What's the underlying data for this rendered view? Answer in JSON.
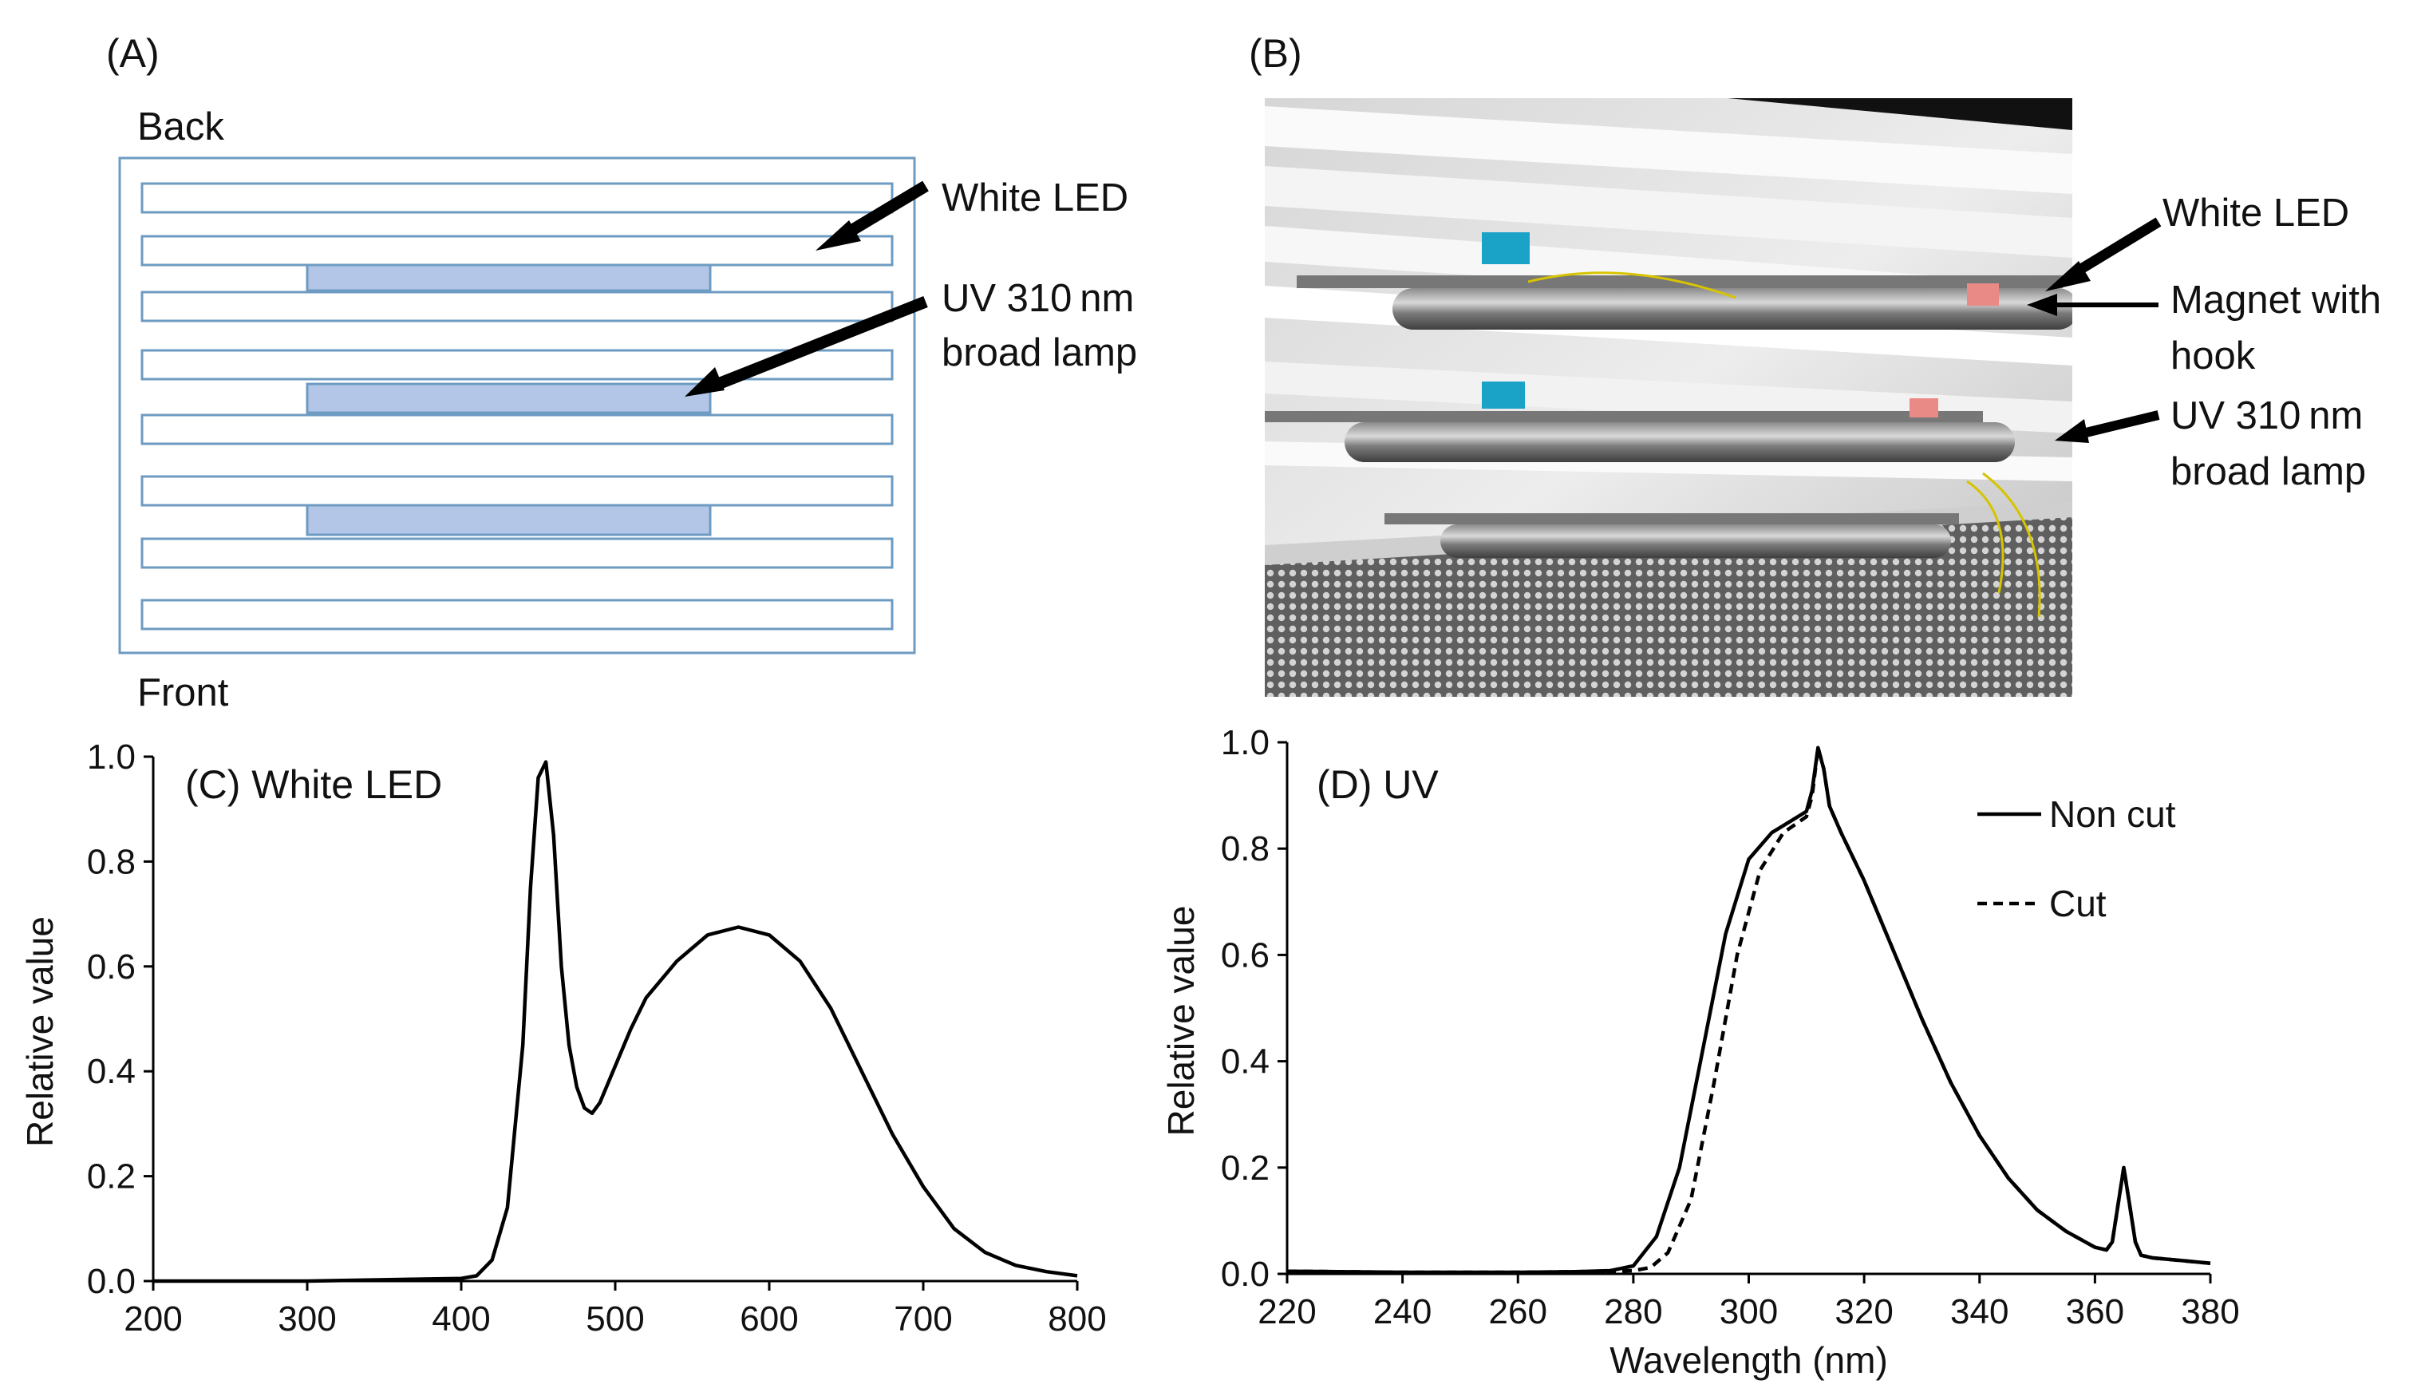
{
  "panel_a": {
    "letter": "(A)",
    "back_label": "Back",
    "front_label": "Front",
    "white_led_label": "White LED",
    "uv_label_line1": "UV 310 nm",
    "uv_label_line2": "broad lamp",
    "rack_color": "#6e9bc2",
    "uv_fill": "#b4c6e7"
  },
  "panel_b": {
    "letter": "(B)",
    "white_led_label": "White LED",
    "magnet_line1": "Magnet with",
    "magnet_line2": "hook",
    "uv_line1": "UV 310 nm",
    "uv_line2": "broad lamp"
  },
  "chart_data": [
    {
      "type": "line",
      "panel": "C",
      "title": "(C) White LED",
      "xlabel": "",
      "ylabel": "Relative value",
      "xlim": [
        200,
        800
      ],
      "ylim": [
        0,
        1
      ],
      "x_ticks": [
        "200",
        "300",
        "400",
        "500",
        "600",
        "700",
        "800"
      ],
      "y_ticks": [
        "0.0",
        "0.2",
        "0.4",
        "0.6",
        "0.8",
        "1.0"
      ],
      "series": [
        {
          "name": "White LED",
          "style": "solid",
          "x": [
            200,
            300,
            400,
            410,
            420,
            430,
            440,
            445,
            450,
            455,
            460,
            465,
            470,
            475,
            480,
            485,
            490,
            500,
            510,
            520,
            540,
            560,
            580,
            600,
            620,
            640,
            660,
            680,
            700,
            720,
            740,
            760,
            780,
            800
          ],
          "y": [
            0.0,
            0.0,
            0.005,
            0.01,
            0.04,
            0.14,
            0.45,
            0.75,
            0.96,
            0.99,
            0.85,
            0.6,
            0.45,
            0.37,
            0.33,
            0.32,
            0.34,
            0.41,
            0.48,
            0.54,
            0.61,
            0.66,
            0.675,
            0.66,
            0.61,
            0.52,
            0.4,
            0.28,
            0.18,
            0.1,
            0.055,
            0.03,
            0.018,
            0.01
          ]
        }
      ]
    },
    {
      "type": "line",
      "panel": "D",
      "title": "(D) UV",
      "xlabel": "Wavelength (nm)",
      "ylabel": "Relative value",
      "xlim": [
        220,
        380
      ],
      "ylim": [
        0,
        1
      ],
      "x_ticks": [
        "220",
        "240",
        "260",
        "280",
        "300",
        "320",
        "340",
        "360",
        "380"
      ],
      "y_ticks": [
        "0.0",
        "0.2",
        "0.4",
        "0.6",
        "0.8",
        "1.0"
      ],
      "legend_position": "top-right",
      "series": [
        {
          "name": "Non cut",
          "style": "solid",
          "x": [
            220,
            240,
            260,
            270,
            276,
            280,
            284,
            288,
            292,
            296,
            300,
            304,
            307,
            310,
            311,
            312,
            313,
            314,
            316,
            320,
            325,
            330,
            335,
            340,
            345,
            350,
            355,
            360,
            362,
            363,
            364,
            365,
            366,
            367,
            368,
            370,
            375,
            380
          ],
          "y": [
            0.005,
            0.003,
            0.003,
            0.004,
            0.006,
            0.015,
            0.07,
            0.2,
            0.42,
            0.64,
            0.78,
            0.83,
            0.85,
            0.87,
            0.91,
            0.99,
            0.95,
            0.88,
            0.83,
            0.74,
            0.61,
            0.48,
            0.36,
            0.26,
            0.18,
            0.12,
            0.08,
            0.05,
            0.045,
            0.06,
            0.13,
            0.2,
            0.13,
            0.06,
            0.035,
            0.03,
            0.025,
            0.02
          ]
        },
        {
          "name": "Cut",
          "style": "dashed",
          "x": [
            220,
            240,
            260,
            270,
            276,
            280,
            283,
            286,
            290,
            294,
            298,
            302,
            306,
            310,
            311,
            312,
            313,
            314,
            316,
            320,
            325,
            330,
            335,
            340,
            345,
            350,
            355,
            360,
            362,
            363,
            364,
            365,
            366,
            367,
            368,
            370,
            375,
            380
          ],
          "y": [
            0.005,
            0.003,
            0.003,
            0.004,
            0.005,
            0.006,
            0.012,
            0.04,
            0.14,
            0.36,
            0.6,
            0.76,
            0.83,
            0.86,
            0.9,
            0.99,
            0.95,
            0.88,
            0.83,
            0.74,
            0.61,
            0.48,
            0.36,
            0.26,
            0.18,
            0.12,
            0.08,
            0.05,
            0.045,
            0.06,
            0.13,
            0.2,
            0.13,
            0.06,
            0.035,
            0.03,
            0.025,
            0.02
          ]
        }
      ]
    }
  ]
}
